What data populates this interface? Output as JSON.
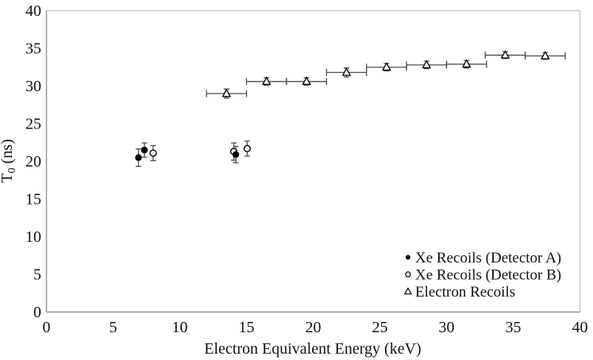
{
  "figure": {
    "background": "#ffffff",
    "frame_color": "#c2c2c2",
    "axis_line_color": "#9a9a9a",
    "marker_color": "#000000",
    "error_bar_color": "#4d4d4d"
  },
  "chart_data": {
    "type": "scatter",
    "title": "",
    "xlabel": "Electron Equivalent Energy (keV)",
    "ylabel": {
      "pre": "T",
      "sub": "0",
      "post": " (ns)"
    },
    "xlim": [
      0,
      40
    ],
    "ylim": [
      0,
      40
    ],
    "xticks": [
      0,
      5,
      10,
      15,
      20,
      25,
      30,
      35,
      40
    ],
    "yticks": [
      0,
      5,
      10,
      15,
      20,
      25,
      30,
      35,
      40
    ],
    "grid": false,
    "legend_position": "bottom-right",
    "series": [
      {
        "name": "Xe Recoils (Detector A)",
        "marker": "filled-circle",
        "points": [
          {
            "x": 6.9,
            "y": 20.5,
            "yerr": 1.15
          },
          {
            "x": 7.35,
            "y": 21.5,
            "yerr": 0.95
          },
          {
            "x": 14.2,
            "y": 20.9,
            "yerr": 1.1
          }
        ]
      },
      {
        "name": "Xe Recoils (Detector B)",
        "marker": "open-circle",
        "points": [
          {
            "x": 8.0,
            "y": 21.1,
            "yerr": 1.0
          },
          {
            "x": 14.05,
            "y": 21.3,
            "yerr": 1.15
          },
          {
            "x": 15.05,
            "y": 21.7,
            "yerr": 1.0
          }
        ]
      },
      {
        "name": "Electron Recoils",
        "marker": "open-triangle",
        "points": [
          {
            "x": 13.5,
            "y": 29.0,
            "xerr": 1.5,
            "yerr": 0.6
          },
          {
            "x": 16.5,
            "y": 30.6,
            "xerr": 1.5,
            "yerr": 0.5
          },
          {
            "x": 19.5,
            "y": 30.6,
            "xerr": 1.5,
            "yerr": 0.5
          },
          {
            "x": 22.5,
            "y": 31.8,
            "xerr": 1.5,
            "yerr": 0.6
          },
          {
            "x": 25.5,
            "y": 32.5,
            "xerr": 1.5,
            "yerr": 0.5
          },
          {
            "x": 28.5,
            "y": 32.8,
            "xerr": 1.5,
            "yerr": 0.5
          },
          {
            "x": 31.5,
            "y": 32.9,
            "xerr": 1.5,
            "yerr": 0.5
          },
          {
            "x": 34.4,
            "y": 34.1,
            "xerr": 1.5,
            "yerr": 0.45
          },
          {
            "x": 37.4,
            "y": 34.0,
            "xerr": 1.5,
            "yerr": 0.45
          }
        ]
      }
    ]
  }
}
